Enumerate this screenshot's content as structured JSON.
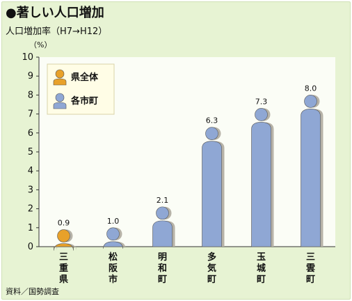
{
  "title": "●著しい人口増加",
  "subtitle": "人口増加率（H7→H12）",
  "source": "資料／国勢調査",
  "colors": {
    "prefecture": "#e8a12a",
    "towns": "#8fa7d4",
    "background": "#e7f3d3"
  },
  "chart_data": {
    "type": "bar",
    "categories": [
      "三重県",
      "松阪市",
      "明和町",
      "多気町",
      "玉城町",
      "三雲町"
    ],
    "values": [
      0.9,
      1.0,
      2.1,
      6.3,
      7.3,
      8.0
    ],
    "value_labels": [
      "0.9",
      "1.0",
      "2.1",
      "6.3",
      "7.3",
      "8.0"
    ],
    "series": [
      {
        "name": "県全体",
        "color": "#e8a12a",
        "categories": [
          "三重県"
        ]
      },
      {
        "name": "各市町",
        "color": "#8fa7d4",
        "categories": [
          "松阪市",
          "明和町",
          "多気町",
          "玉城町",
          "三雲町"
        ]
      }
    ],
    "title": "●著しい人口増加",
    "ylabel": "（%）",
    "ylim": [
      0,
      10
    ],
    "yticks": [
      "0",
      "1",
      "2",
      "3",
      "4",
      "5",
      "6",
      "7",
      "8",
      "9",
      "10"
    ],
    "grid": false,
    "legend_placement": "top-left"
  }
}
